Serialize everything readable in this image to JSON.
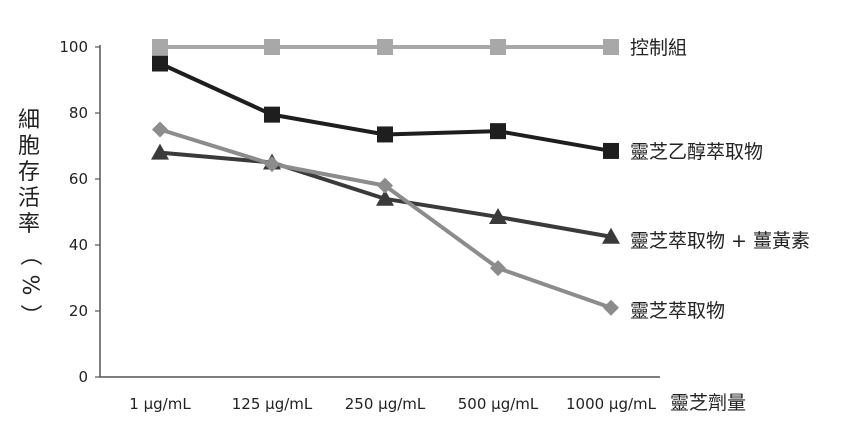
{
  "chart_data": {
    "type": "line",
    "title": "",
    "categories": [
      "1 μg/mL",
      "125 μg/mL",
      "250 μg/mL",
      "500 μg/mL",
      "1000 μg/mL"
    ],
    "xlabel": "靈芝劑量",
    "ylabel_chars": [
      "細",
      "胞",
      "存",
      "活",
      "率"
    ],
    "ylabel_paren_open": "（",
    "ylabel_unit": "%",
    "ylabel_paren_close": "）",
    "ylim": [
      0,
      100
    ],
    "yticks": [
      0,
      20,
      40,
      60,
      80,
      100
    ],
    "grid": false,
    "legend": "right, at line ends",
    "series": [
      {
        "name": "控制組",
        "values": [
          100,
          100,
          100,
          100,
          100
        ],
        "color": "#a8a8a8",
        "marker": "square"
      },
      {
        "name": "靈芝乙醇萃取物",
        "values": [
          95,
          79.5,
          73.5,
          74.5,
          68.5
        ],
        "color": "#1e1e1e",
        "marker": "square"
      },
      {
        "name": "靈芝萃取物 + 薑黃素",
        "values": [
          68,
          65,
          54,
          48.5,
          42.5
        ],
        "color": "#3a3a3a",
        "marker": "triangle"
      },
      {
        "name": "靈芝萃取物",
        "values": [
          75,
          64.5,
          58,
          33,
          21
        ],
        "color": "#8c8c8c",
        "marker": "diamond"
      }
    ]
  }
}
